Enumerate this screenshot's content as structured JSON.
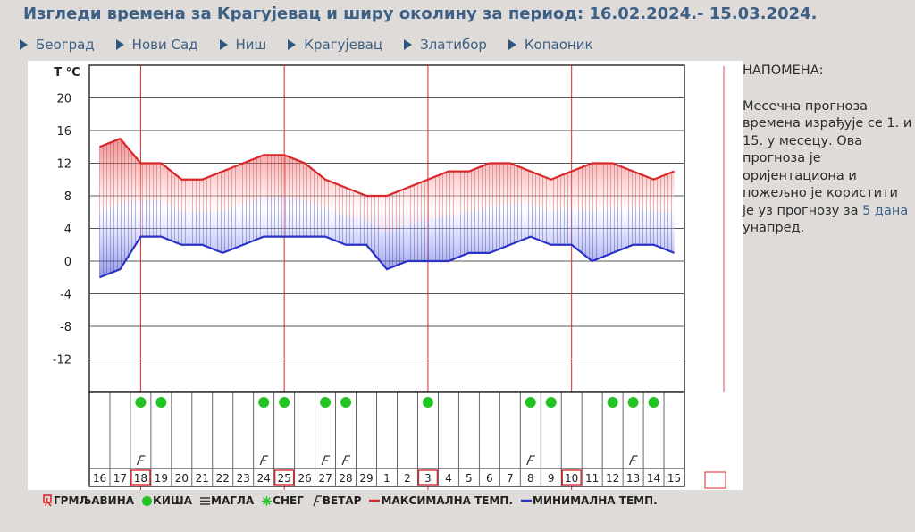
{
  "page": {
    "title": "Изгледи времена за Крагујевац и ширу околину за период: 16.02.2024.- 15.03.2024."
  },
  "nav": [
    {
      "label": "Београд"
    },
    {
      "label": "Нови Сад"
    },
    {
      "label": "Ниш"
    },
    {
      "label": "Крагујевац"
    },
    {
      "label": "Златибор"
    },
    {
      "label": "Копаоник"
    }
  ],
  "note": {
    "heading": "НАПОМЕНА:",
    "text": "Месечна прогноза времена израђује се 1. и 15. у месецу. Ова прогноза је оријентациона и пожељно је користити је уз прогнозу за",
    "link": "5 дана",
    "tail": "унапред."
  },
  "legend": [
    {
      "label": "ГРМЉАВИНА",
      "icon": "thunder-icon"
    },
    {
      "label": "КИША",
      "icon": "rain-icon"
    },
    {
      "label": "МАГЛА",
      "icon": "fog-icon"
    },
    {
      "label": "СНЕГ",
      "icon": "snow-icon"
    },
    {
      "label": "ВЕТАР",
      "icon": "wind-icon"
    },
    {
      "label": "МАКСИМАЛНА ТЕМП.",
      "icon": "max-temp-line-icon"
    },
    {
      "label": "МИНИМАЛНА ТЕМП.",
      "icon": "min-temp-line-icon"
    }
  ],
  "colors": {
    "max": "#d9282b",
    "min": "#2b33c7",
    "rain": "#22c322",
    "highlight": "#d9282b"
  },
  "chart_data": {
    "type": "line",
    "title": "",
    "ylabel": "T °C",
    "ylim": [
      -16,
      24
    ],
    "yticks": [
      20,
      16,
      12,
      8,
      4,
      0,
      -4,
      -8,
      -12
    ],
    "days": [
      "16",
      "17",
      "18",
      "19",
      "20",
      "21",
      "22",
      "23",
      "24",
      "25",
      "26",
      "27",
      "28",
      "29",
      "1",
      "2",
      "3",
      "4",
      "5",
      "6",
      "7",
      "8",
      "9",
      "10",
      "11",
      "12",
      "13",
      "14",
      "15"
    ],
    "highlighted_days": [
      "18",
      "25",
      "3",
      "10"
    ],
    "series": [
      {
        "name": "Максимална темп.",
        "values": [
          14,
          15,
          12,
          12,
          10,
          10,
          11,
          12,
          13,
          13,
          12,
          10,
          9,
          8,
          8,
          9,
          10,
          11,
          11,
          12,
          12,
          11,
          10,
          11,
          12,
          12,
          11,
          10,
          11
        ]
      },
      {
        "name": "Минимална темп.",
        "values": [
          -2,
          -1,
          3,
          3,
          2,
          2,
          1,
          2,
          3,
          3,
          3,
          3,
          2,
          2,
          -1,
          0,
          0,
          0,
          1,
          1,
          2,
          3,
          2,
          2,
          0,
          1,
          2,
          2,
          1
        ]
      }
    ],
    "rain_days": [
      "18",
      "19",
      "24",
      "25",
      "27",
      "28",
      "3",
      "8",
      "9",
      "12",
      "13",
      "14"
    ],
    "wind_days": [
      "18",
      "24",
      "27",
      "28",
      "8",
      "13"
    ]
  }
}
